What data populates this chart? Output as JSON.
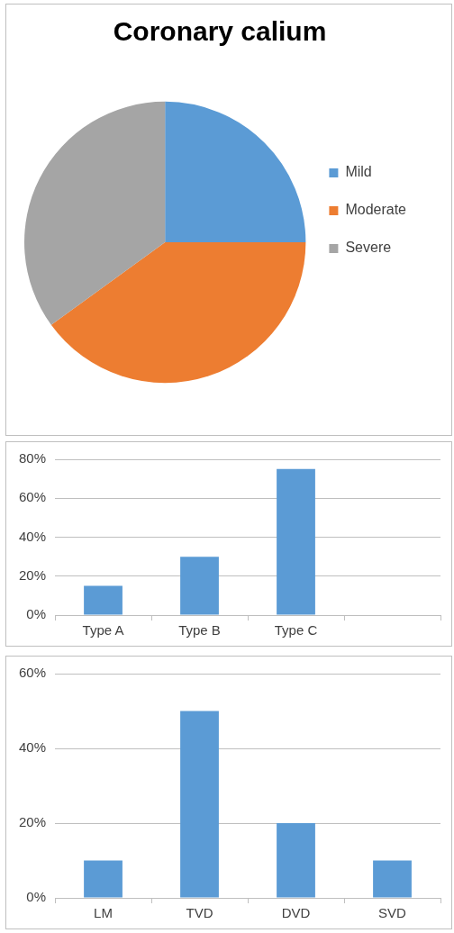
{
  "chart_data": [
    {
      "type": "pie",
      "title": "Coronary calium",
      "categories": [
        "Mild",
        "Moderate",
        "Severe"
      ],
      "values": [
        25,
        40,
        35
      ],
      "colors": [
        "#5b9bd5",
        "#ed7d31",
        "#a5a5a5"
      ],
      "legend": "right"
    },
    {
      "type": "bar",
      "categories": [
        "Type A",
        "Type B",
        "Type C",
        null
      ],
      "values": [
        15,
        30,
        75,
        null
      ],
      "color": "#5b9bd5",
      "ylim": [
        0,
        80
      ],
      "yticks": [
        {
          "value": 0,
          "label": "0%"
        },
        {
          "value": 20,
          "label": "20%"
        },
        {
          "value": 40,
          "label": "40%"
        },
        {
          "value": 60,
          "label": "60%"
        },
        {
          "value": 80,
          "label": "80%"
        }
      ],
      "grid": "y"
    },
    {
      "type": "bar",
      "categories": [
        "LM",
        "TVD",
        "DVD",
        "SVD"
      ],
      "values": [
        10,
        50,
        20,
        10
      ],
      "color": "#5b9bd5",
      "ylim": [
        0,
        60
      ],
      "yticks": [
        {
          "value": 0,
          "label": "0%"
        },
        {
          "value": 20,
          "label": "20%"
        },
        {
          "value": 40,
          "label": "40%"
        },
        {
          "value": 60,
          "label": "60%"
        }
      ],
      "grid": "y"
    }
  ]
}
